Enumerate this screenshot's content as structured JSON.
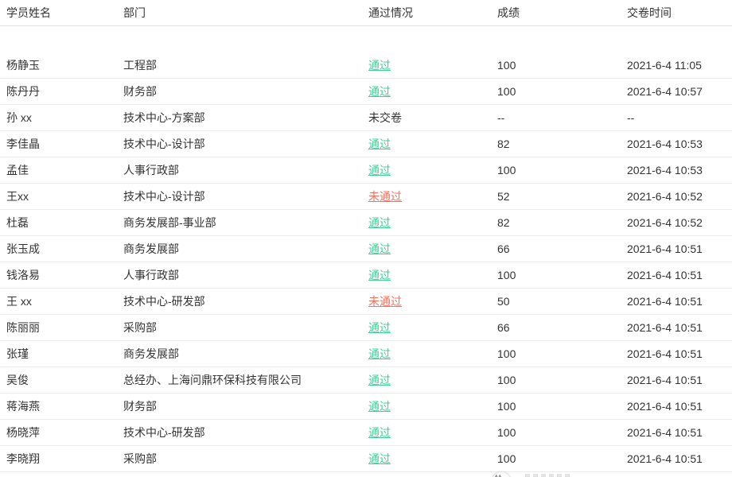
{
  "colors": {
    "pass": "#42cf97",
    "fail": "#f8705f",
    "text": "#333333",
    "header_border": "#e2e2e2",
    "row_border": "#ebebeb"
  },
  "table": {
    "columns": [
      "学员姓名",
      "部门",
      "通过情况",
      "成绩",
      "交卷时间"
    ],
    "rows": [
      {
        "name": "杨静玉",
        "dept": "工程部",
        "status": "通过",
        "status_type": "pass",
        "score": "100",
        "time": "2021-6-4 11:05"
      },
      {
        "name": "陈丹丹",
        "dept": "财务部",
        "status": "通过",
        "status_type": "pass",
        "score": "100",
        "time": "2021-6-4 10:57"
      },
      {
        "name": "孙 xx",
        "dept": "技术中心-方案部",
        "status": "未交卷",
        "status_type": "none",
        "score": "--",
        "time": "--"
      },
      {
        "name": "李佳晶",
        "dept": "技术中心-设计部",
        "status": "通过",
        "status_type": "pass",
        "score": "82",
        "time": "2021-6-4 10:53"
      },
      {
        "name": "孟佳",
        "dept": "人事行政部",
        "status": "通过",
        "status_type": "pass",
        "score": "100",
        "time": "2021-6-4 10:53"
      },
      {
        "name": "王xx",
        "dept": "技术中心-设计部",
        "status": "未通过",
        "status_type": "fail",
        "score": "52",
        "time": "2021-6-4 10:52"
      },
      {
        "name": "杜磊",
        "dept": "商务发展部-事业部",
        "status": "通过",
        "status_type": "pass",
        "score": "82",
        "time": "2021-6-4 10:52"
      },
      {
        "name": "张玉成",
        "dept": "商务发展部",
        "status": "通过",
        "status_type": "pass",
        "score": "66",
        "time": "2021-6-4 10:51"
      },
      {
        "name": "钱洛易",
        "dept": "人事行政部",
        "status": "通过",
        "status_type": "pass",
        "score": "100",
        "time": "2021-6-4 10:51"
      },
      {
        "name": "王 xx",
        "dept": "技术中心-研发部",
        "status": "未通过",
        "status_type": "fail",
        "score": "50",
        "time": "2021-6-4 10:51"
      },
      {
        "name": "陈丽丽",
        "dept": "采购部",
        "status": "通过",
        "status_type": "pass",
        "score": "66",
        "time": "2021-6-4 10:51"
      },
      {
        "name": "张瑾",
        "dept": "商务发展部",
        "status": "通过",
        "status_type": "pass",
        "score": "100",
        "time": "2021-6-4 10:51"
      },
      {
        "name": "吴俊",
        "dept": "总经办、上海问鼎环保科技有限公司",
        "status": "通过",
        "status_type": "pass",
        "score": "100",
        "time": "2021-6-4 10:51"
      },
      {
        "name": "蒋海燕",
        "dept": "财务部",
        "status": "通过",
        "status_type": "pass",
        "score": "100",
        "time": "2021-6-4 10:51"
      },
      {
        "name": "杨晓萍",
        "dept": "技术中心-研发部",
        "status": "通过",
        "status_type": "pass",
        "score": "100",
        "time": "2021-6-4 10:51"
      },
      {
        "name": "李晓翔",
        "dept": "采购部",
        "status": "通过",
        "status_type": "pass",
        "score": "100",
        "time": "2021-6-4 10:51"
      }
    ]
  }
}
